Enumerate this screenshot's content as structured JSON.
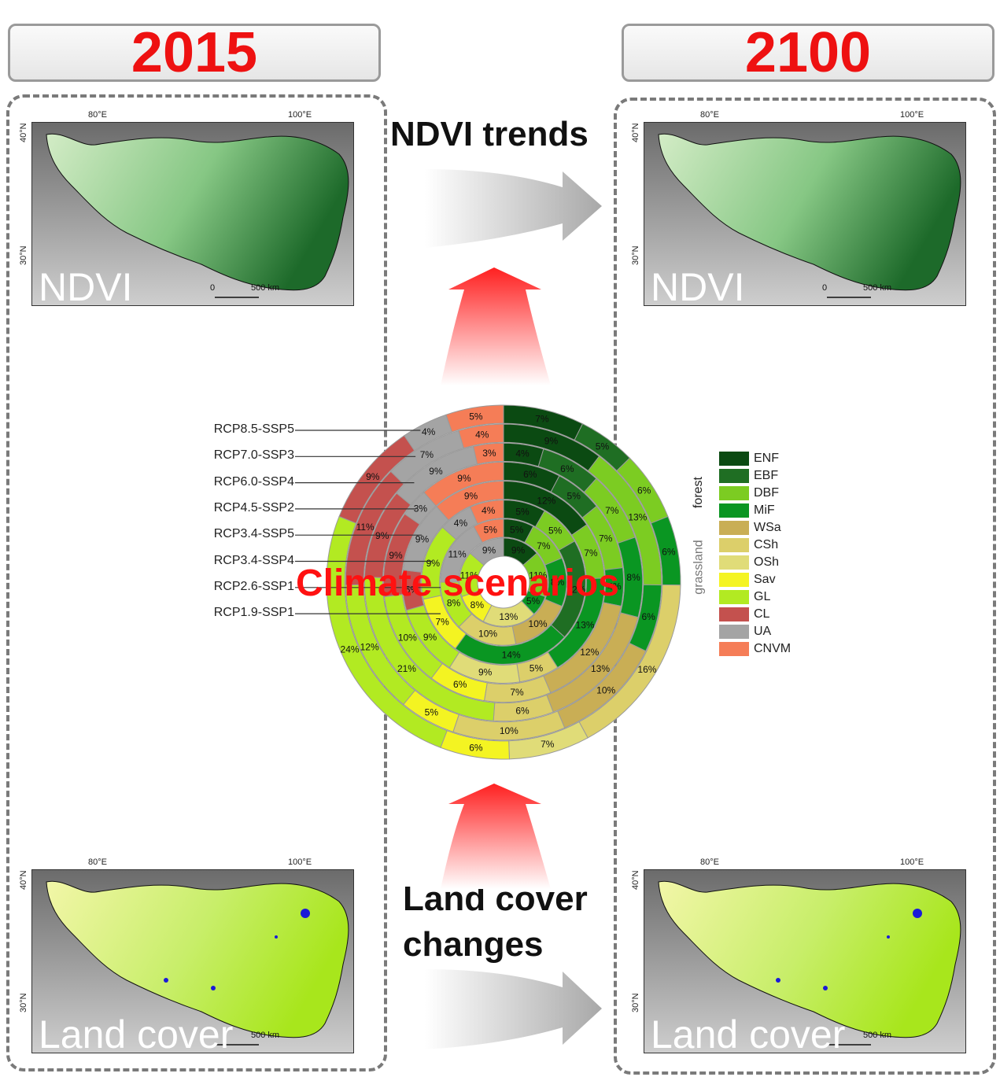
{
  "header": {
    "year_left": "2015",
    "year_right": "2100"
  },
  "flow": {
    "ndvi_trends": "NDVI trends",
    "land_cover_changes_l1": "Land cover",
    "land_cover_changes_l2": "changes",
    "climate": "Climate scenarios"
  },
  "maps": {
    "ndvi_label": "NDVI",
    "land_label": "Land cover",
    "lon1": "80°E",
    "lon2": "100°E",
    "lat1": "40°N",
    "lat2": "30°N",
    "scale_zero": "0",
    "scale_km": "500 km"
  },
  "scenarios": [
    "RCP8.5-SSP5",
    "RCP7.0-SSP3",
    "RCP6.0-SSP4",
    "RCP4.5-SSP2",
    "RCP3.4-SSP5",
    "RCP3.4-SSP4",
    "RCP2.6-SSP1",
    "RCP1.9-SSP1"
  ],
  "legend": {
    "groups": {
      "forest": "forest",
      "grassland": "grassland"
    },
    "items": [
      {
        "code": "ENF",
        "color": "#0b4a12"
      },
      {
        "code": "EBF",
        "color": "#1f6e23"
      },
      {
        "code": "DBF",
        "color": "#7ccc22"
      },
      {
        "code": "MiF",
        "color": "#0a9622"
      },
      {
        "code": "WSa",
        "color": "#c9ae55"
      },
      {
        "code": "CSh",
        "color": "#dccf6a"
      },
      {
        "code": "OSh",
        "color": "#e0dc78"
      },
      {
        "code": "Sav",
        "color": "#f4f422"
      },
      {
        "code": "GL",
        "color": "#b2ea22"
      },
      {
        "code": "CL",
        "color": "#c4514e"
      },
      {
        "code": "UA",
        "color": "#a4a4a4"
      },
      {
        "code": "CNVM",
        "color": "#f57d57"
      }
    ]
  },
  "chart_data": {
    "type": "radial-stacked-bar",
    "rings_outer_to_inner": [
      "RCP8.5-SSP5",
      "RCP7.0-SSP3",
      "RCP6.0-SSP4",
      "RCP4.5-SSP2",
      "RCP3.4-SSP5",
      "RCP3.4-SSP4",
      "RCP2.6-SSP1",
      "RCP1.9-SSP1"
    ],
    "categories": [
      "ENF",
      "EBF",
      "DBF",
      "MiF",
      "WSa",
      "CSh",
      "OSh",
      "Sav",
      "GL",
      "CL",
      "UA",
      "CNVM"
    ],
    "rings": [
      {
        "scenario": "RCP8.5-SSP5",
        "segments": [
          {
            "c": "ENF",
            "v": 7
          },
          {
            "c": "EBF",
            "v": 5
          },
          {
            "c": "DBF",
            "v": 6
          },
          {
            "c": "MiF",
            "v": 6
          },
          {
            "c": "CSh",
            "v": 16
          },
          {
            "c": "OSh",
            "v": 7
          },
          {
            "c": "Sav",
            "v": 6
          },
          {
            "c": "GL",
            "v": 24
          },
          {
            "c": "CL",
            "v": 9
          },
          {
            "c": "UA",
            "v": 4
          },
          {
            "c": "CNVM",
            "v": 5
          }
        ]
      },
      {
        "scenario": "RCP7.0-SSP3",
        "segments": [
          {
            "c": "ENF",
            "v": 9
          },
          {
            "c": "DBF",
            "v": 13
          },
          {
            "c": "MiF",
            "v": 6
          },
          {
            "c": "WSa",
            "v": 10
          },
          {
            "c": "CSh",
            "v": 10
          },
          {
            "c": "Sav",
            "v": 5
          },
          {
            "c": "GL",
            "v": 12
          },
          {
            "c": "CL",
            "v": 11
          },
          {
            "c": "UA",
            "v": 7
          },
          {
            "c": "CNVM",
            "v": 4
          }
        ]
      },
      {
        "scenario": "RCP6.0-SSP4",
        "segments": [
          {
            "c": "ENF",
            "v": 4
          },
          {
            "c": "EBF",
            "v": 6
          },
          {
            "c": "DBF",
            "v": 7
          },
          {
            "c": "MiF",
            "v": 8
          },
          {
            "c": "WSa",
            "v": 13
          },
          {
            "c": "CSh",
            "v": 6
          },
          {
            "c": "GL",
            "v": 21
          },
          {
            "c": "CL",
            "v": 9
          },
          {
            "c": "UA",
            "v": 9
          },
          {
            "c": "CNVM",
            "v": 3
          }
        ]
      },
      {
        "scenario": "RCP4.5-SSP2",
        "segments": [
          {
            "c": "ENF",
            "v": 6
          },
          {
            "c": "EBF",
            "v": 5
          },
          {
            "c": "DBF",
            "v": 7
          },
          {
            "c": "MiF",
            "v": 4
          },
          {
            "c": "WSa",
            "v": 12
          },
          {
            "c": "CSh",
            "v": 7
          },
          {
            "c": "Sav",
            "v": 6
          },
          {
            "c": "GL",
            "v": 10
          },
          {
            "c": "CL",
            "v": 9
          },
          {
            "c": "UA",
            "v": 3
          },
          {
            "c": "CNVM",
            "v": 9
          }
        ]
      },
      {
        "scenario": "RCP3.4-SSP5",
        "segments": [
          {
            "c": "ENF",
            "v": 12
          },
          {
            "c": "DBF",
            "v": 7
          },
          {
            "c": "MiF",
            "v": 13
          },
          {
            "c": "CSh",
            "v": 5
          },
          {
            "c": "OSh",
            "v": 9
          },
          {
            "c": "GL",
            "v": 9
          },
          {
            "c": "CL",
            "v": 5
          },
          {
            "c": "UA",
            "v": 9
          },
          {
            "c": "CNVM",
            "v": 9
          }
        ]
      },
      {
        "scenario": "RCP3.4-SSP4",
        "segments": [
          {
            "c": "ENF",
            "v": 5
          },
          {
            "c": "DBF",
            "v": 5
          },
          {
            "c": "EBF",
            "v": 12
          },
          {
            "c": "MiF",
            "v": 14
          },
          {
            "c": "Sav",
            "v": 7
          },
          {
            "c": "GL",
            "v": 9
          },
          {
            "c": "UA",
            "v": 4
          },
          {
            "c": "CNVM",
            "v": 4
          }
        ]
      },
      {
        "scenario": "RCP2.6-SSP1",
        "segments": [
          {
            "c": "ENF",
            "v": 5
          },
          {
            "c": "DBF",
            "v": 7
          },
          {
            "c": "MiF",
            "v": 8
          },
          {
            "c": "WSa",
            "v": 10
          },
          {
            "c": "CSh",
            "v": 10
          },
          {
            "c": "GL",
            "v": 8
          },
          {
            "c": "UA",
            "v": 11
          },
          {
            "c": "CNVM",
            "v": 5
          }
        ]
      },
      {
        "scenario": "RCP1.9-SSP1",
        "segments": [
          {
            "c": "ENF",
            "v": 9
          },
          {
            "c": "DBF",
            "v": 11
          },
          {
            "c": "MiF",
            "v": 5
          },
          {
            "c": "OSh",
            "v": 13
          },
          {
            "c": "Sav",
            "v": 8
          },
          {
            "c": "GL",
            "v": 11
          },
          {
            "c": "UA",
            "v": 9
          }
        ]
      }
    ]
  }
}
